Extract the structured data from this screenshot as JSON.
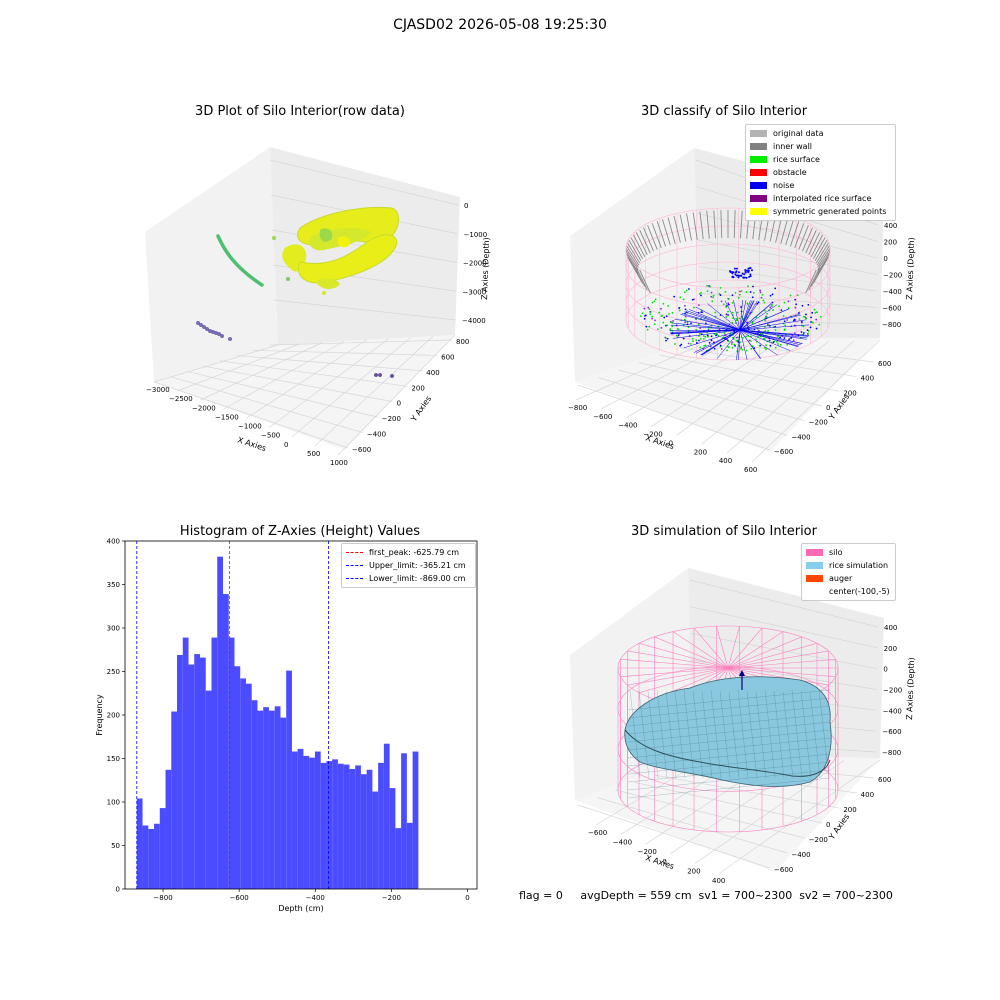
{
  "suptitle": "CJASD02 2026-05-08 19:25:30",
  "panel1": {
    "title": "3D Plot of Silo Interior(row data)",
    "xlabel": "X Axies",
    "ylabel": "Y Axies",
    "zlabel": "Z Axies (Depth)",
    "xticks": [
      "−3000",
      "−2500",
      "−2000",
      "−1500",
      "−1000",
      "−500",
      "0",
      "500",
      "1000"
    ],
    "yticks": [
      "−600",
      "−400",
      "−200",
      "0",
      "200",
      "400",
      "600",
      "800"
    ],
    "zticks": [
      "0",
      "−1000",
      "−2000",
      "−3000",
      "−4000"
    ]
  },
  "panel2": {
    "title": "3D classify of Silo Interior",
    "xlabel": "X Axies",
    "ylabel": "Y Axies",
    "zlabel": "Z Axies (Depth)",
    "xticks": [
      "−800",
      "−600",
      "−400",
      "−200",
      "0",
      "200",
      "400",
      "600"
    ],
    "yticks": [
      "−600",
      "−400",
      "−200",
      "0",
      "200",
      "400",
      "600"
    ],
    "zticks": [
      "400",
      "200",
      "0",
      "−200",
      "−400",
      "−600",
      "−800"
    ],
    "legend": [
      {
        "label": "original data",
        "color": "#b3b3b3"
      },
      {
        "label": "inner wall",
        "color": "#808080"
      },
      {
        "label": "rice surface",
        "color": "#00ee00"
      },
      {
        "label": "obstacle",
        "color": "#ff0000"
      },
      {
        "label": "noise",
        "color": "#0000ee"
      },
      {
        "label": "interpolated rice surface",
        "color": "#800080"
      },
      {
        "label": "symmetric generated points",
        "color": "#ffff00"
      }
    ]
  },
  "panel3": {
    "title": "Histogram of Z-Axies (Height) Values",
    "legend": [
      {
        "label": "first_peak: -625.79 cm",
        "color": "#ff0000"
      },
      {
        "label": "Upper_limit: -365.21 cm",
        "color": "#0000ff"
      },
      {
        "label": "Lower_limit: -869.00 cm",
        "color": "#0000ff"
      }
    ]
  },
  "panel4": {
    "title": "3D simulation of Silo Interior",
    "xlabel": "X Axies",
    "ylabel": "Y Axies",
    "zlabel": "Z Axies (Depth)",
    "xticks": [
      "−600",
      "−400",
      "−200",
      "0",
      "200",
      "400"
    ],
    "yticks": [
      "−600",
      "−400",
      "−200",
      "0",
      "200",
      "400",
      "600"
    ],
    "zticks": [
      "400",
      "200",
      "0",
      "−200",
      "−400",
      "−600",
      "−800"
    ],
    "legend": [
      {
        "label": "silo",
        "color": "#ff69b4"
      },
      {
        "label": "rice simulation",
        "color": "#87ceeb"
      },
      {
        "label": "auger",
        "color": "#ff4500"
      },
      {
        "label": "center(-100,-5)",
        "color": ""
      }
    ]
  },
  "status": "flag = 0     avgDepth = 559 cm  sv1 = 700~2300  sv2 = 700~2300",
  "chart_data": [
    {
      "type": "scatter",
      "title": "3D Plot of Silo Interior(row data)",
      "xlabel": "X Axies",
      "ylabel": "Y Axies",
      "zlabel": "Z Axies (Depth)",
      "xlim": [
        -3000,
        1000
      ],
      "ylim": [
        -600,
        800
      ],
      "zlim": [
        -4000,
        0
      ]
    },
    {
      "type": "scatter",
      "title": "3D classify of Silo Interior",
      "xlabel": "X Axies",
      "ylabel": "Y Axies",
      "zlabel": "Z Axies (Depth)",
      "series": [
        {
          "name": "original data"
        },
        {
          "name": "inner wall"
        },
        {
          "name": "rice surface"
        },
        {
          "name": "obstacle"
        },
        {
          "name": "noise"
        },
        {
          "name": "interpolated rice surface"
        },
        {
          "name": "symmetric generated points"
        }
      ]
    },
    {
      "type": "bar",
      "title": "Histogram of Z-Axies (Height) Values",
      "xlabel": "Depth (cm)",
      "ylabel": "Frequency",
      "xlim": [
        -900,
        25
      ],
      "ylim": [
        0,
        400
      ],
      "bin_start": -869,
      "bin_width": 15.1,
      "values": [
        104,
        73,
        69,
        75,
        93,
        137,
        204,
        269,
        289,
        258,
        270,
        266,
        228,
        289,
        382,
        339,
        289,
        256,
        242,
        236,
        217,
        205,
        209,
        205,
        210,
        197,
        251,
        158,
        161,
        153,
        151,
        158,
        145,
        147,
        149,
        144,
        143,
        138,
        142,
        132,
        137,
        112,
        145,
        167,
        116,
        70,
        156,
        76,
        158
      ],
      "xticks": [
        "−800",
        "−600",
        "−400",
        "−200",
        "0"
      ],
      "yticks": [
        "0",
        "50",
        "100",
        "150",
        "200",
        "250",
        "300",
        "350",
        "400"
      ],
      "vlines": [
        {
          "name": "first_peak: -625.79 cm",
          "x": -625.79,
          "color": "#ff0000"
        },
        {
          "name": "Upper_limit: -365.21 cm",
          "x": -365.21,
          "color": "#0000ff"
        },
        {
          "name": "Lower_limit: -869.00 cm",
          "x": -869.0,
          "color": "#0000ff"
        }
      ],
      "bar_color": "#4b4bff"
    },
    {
      "type": "area",
      "title": "3D simulation of Silo Interior",
      "xlabel": "X Axies",
      "ylabel": "Y Axies",
      "zlabel": "Z Axies (Depth)",
      "series": [
        {
          "name": "silo"
        },
        {
          "name": "rice simulation"
        },
        {
          "name": "auger"
        },
        {
          "name": "center(-100,-5)"
        }
      ]
    }
  ]
}
